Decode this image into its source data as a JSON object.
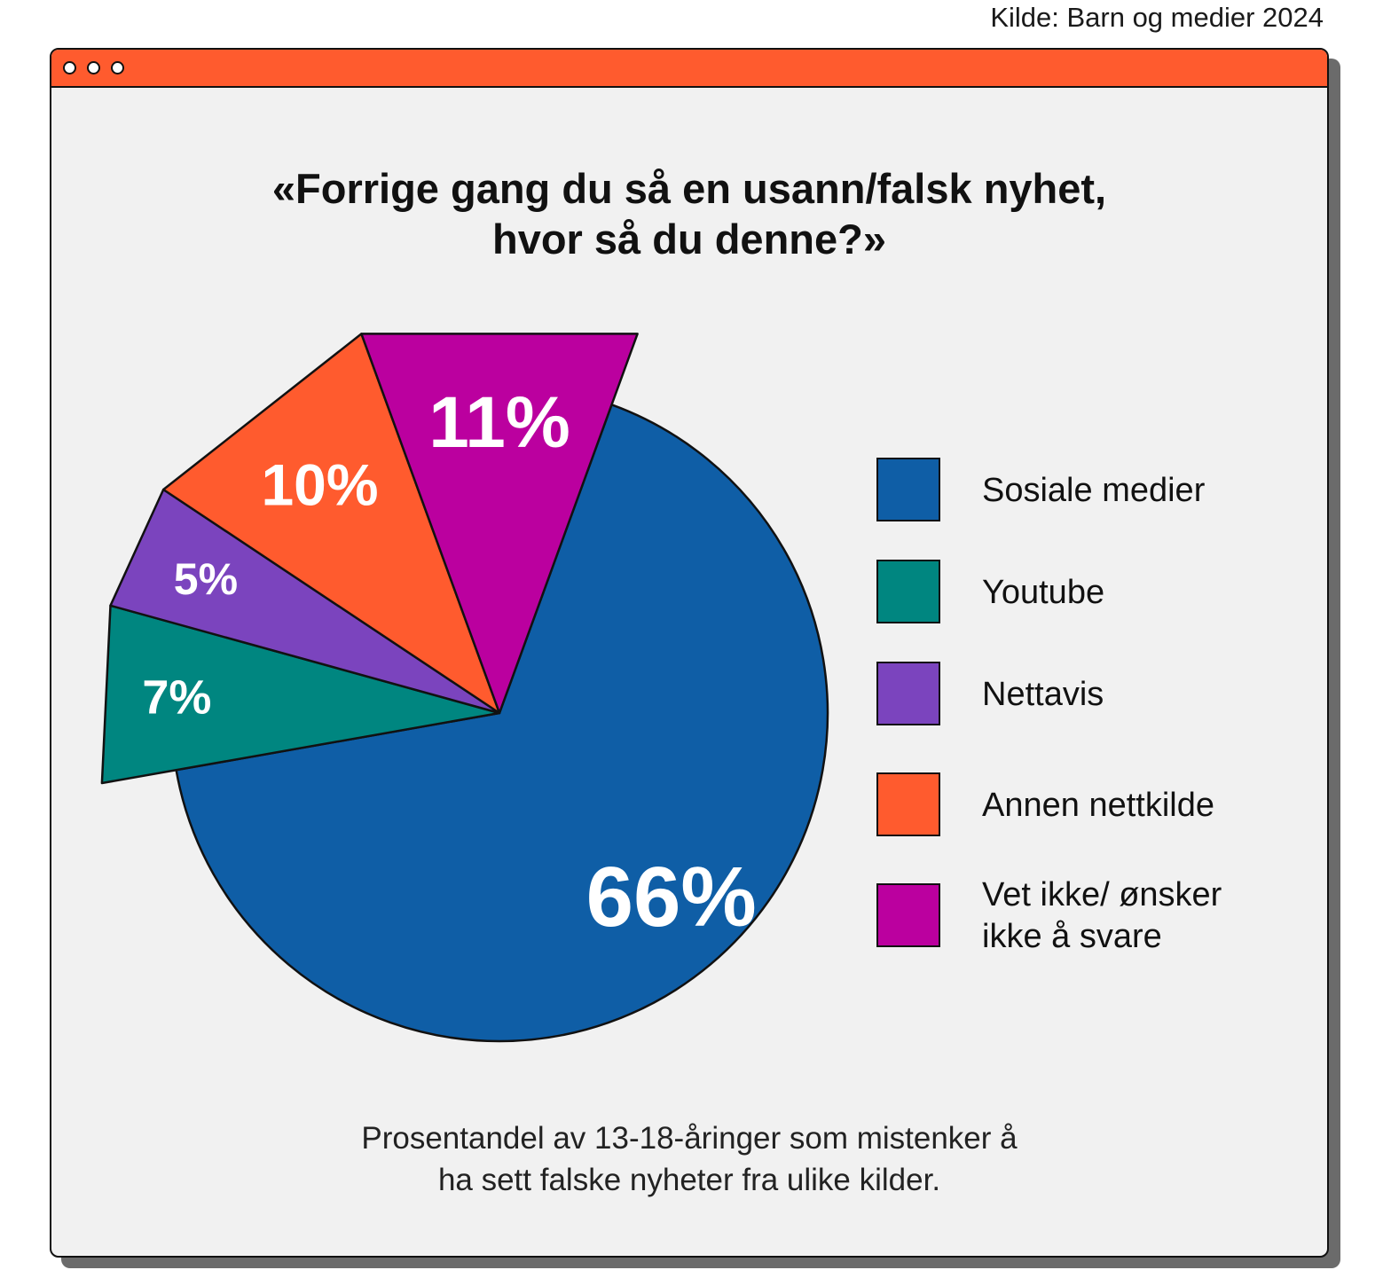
{
  "source": "Kilde: Barn og medier 2024",
  "title_lines": [
    "«Forrige gang du så en usann/falsk nyhet,",
    "hvor så du denne?»"
  ],
  "caption_lines": [
    "Prosentandel av 13-18-åringer som mistenker å",
    "ha sett falske nyheter fra ulike kilder."
  ],
  "chart_data": {
    "type": "pie",
    "title": "«Forrige gang du så en usann/falsk nyhet, hvor så du denne?»",
    "legend_position": "right",
    "slices": [
      {
        "label": "Sosiale medier",
        "value": 66,
        "data_label": "66%",
        "color": "#0f5ea6",
        "exploded": false
      },
      {
        "label": "Youtube",
        "value": 7,
        "data_label": "7%",
        "color": "#008680",
        "exploded": true
      },
      {
        "label": "Nettavis",
        "value": 5,
        "data_label": "5%",
        "color": "#7b44be",
        "exploded": true
      },
      {
        "label": "Annen nettkilde",
        "value": 10,
        "data_label": "10%",
        "color": "#ff5b2e",
        "exploded": true
      },
      {
        "label": "Vet ikke/ ønsker ikke å svare",
        "label_lines": [
          "Vet ikke/ ønsker",
          "ikke å svare"
        ],
        "value": 11,
        "data_label": "11%",
        "color": "#bb009f",
        "exploded": true
      }
    ]
  }
}
